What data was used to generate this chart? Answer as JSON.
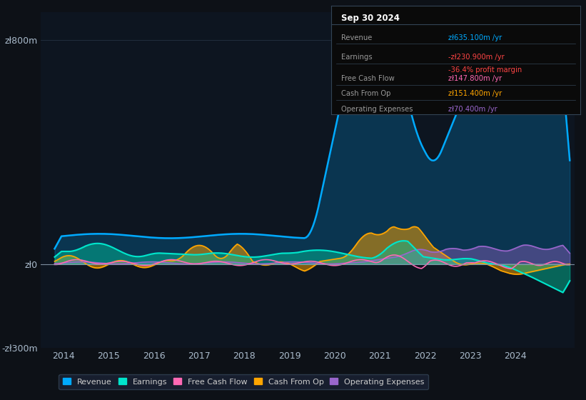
{
  "bg_color": "#0d1117",
  "plot_bg_color": "#0d1520",
  "ylim": [
    -300,
    900
  ],
  "yticks": [
    -300,
    0,
    800
  ],
  "ytick_labels": [
    "-zł300m",
    "zł0",
    "zł800m"
  ],
  "xlim_start": 2013.5,
  "xlim_end": 2025.3,
  "xticks": [
    2014,
    2015,
    2016,
    2017,
    2018,
    2019,
    2020,
    2021,
    2022,
    2023,
    2024
  ],
  "revenue_color": "#00aaff",
  "earnings_color": "#00e5cc",
  "earnings_fill_color": "#00c8a0",
  "fcf_color": "#ff69b4",
  "cashop_color": "#ffa500",
  "opex_color": "#9966cc",
  "legend_items": [
    "Revenue",
    "Earnings",
    "Free Cash Flow",
    "Cash From Op",
    "Operating Expenses"
  ],
  "legend_colors": [
    "#00aaff",
    "#00e5cc",
    "#ff69b4",
    "#ffa500",
    "#9966cc"
  ],
  "info_title": "Sep 30 2024",
  "info_rows": [
    {
      "label": "Revenue",
      "value": "zł635.100m /yr",
      "value_color": "#00aaff",
      "extra": null,
      "extra_color": null
    },
    {
      "label": "Earnings",
      "value": "-zł230.900m /yr",
      "value_color": "#ff4444",
      "extra": "-36.4% profit margin",
      "extra_color": "#ff4444"
    },
    {
      "label": "Free Cash Flow",
      "value": "zł147.800m /yr",
      "value_color": "#ff69b4",
      "extra": null,
      "extra_color": null
    },
    {
      "label": "Cash From Op",
      "value": "zł151.400m /yr",
      "value_color": "#ffa500",
      "extra": null,
      "extra_color": null
    },
    {
      "label": "Operating Expenses",
      "value": "zł70.400m /yr",
      "value_color": "#9966cc",
      "extra": null,
      "extra_color": null
    }
  ]
}
